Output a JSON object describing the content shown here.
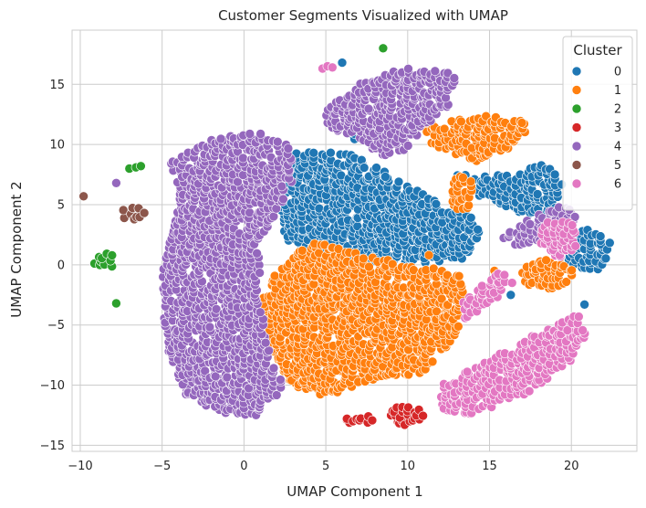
{
  "chart_data": {
    "type": "scatter",
    "title": "Customer Segments Visualized with UMAP",
    "xlabel": "UMAP Component 1",
    "ylabel": "UMAP Component 2",
    "xlim": [
      -10.5,
      24
    ],
    "ylim": [
      -15.5,
      19.5
    ],
    "x_ticks": [
      -10,
      -5,
      0,
      5,
      10,
      15,
      20
    ],
    "y_ticks": [
      -15,
      -10,
      -5,
      0,
      5,
      10,
      15
    ],
    "x_tick_labels": [
      "−10",
      "−5",
      "0",
      "5",
      "10",
      "15",
      "20"
    ],
    "y_tick_labels": [
      "−15",
      "−10",
      "−5",
      "0",
      "5",
      "10",
      "15"
    ],
    "grid": true,
    "legend": {
      "title": "Cluster",
      "placement": "top-right",
      "entries": [
        "0",
        "1",
        "2",
        "3",
        "4",
        "5",
        "6"
      ]
    },
    "series": [
      {
        "name": "0",
        "color": "#1f77b4",
        "regions": [
          {
            "shape": "poly",
            "points": [
              [
                3,
                9.5
              ],
              [
                6,
                9.5
              ],
              [
                9,
                7.5
              ],
              [
                12,
                5
              ],
              [
                14,
                4
              ],
              [
                14.5,
                2.5
              ],
              [
                13.5,
                0.5
              ],
              [
                10,
                0
              ],
              [
                6,
                0.5
              ],
              [
                2.5,
                2
              ],
              [
                2,
                5
              ],
              [
                2.5,
                7.5
              ]
            ]
          },
          {
            "shape": "poly",
            "points": [
              [
                13,
                7.5
              ],
              [
                16,
                7.5
              ],
              [
                18.5,
                8.5
              ],
              [
                19.5,
                7
              ],
              [
                19,
                4.5
              ],
              [
                17,
                4
              ],
              [
                15.5,
                5
              ],
              [
                14,
                6
              ]
            ]
          },
          {
            "shape": "ellipse",
            "cx": 21,
            "cy": 1.2,
            "rx": 1.5,
            "ry": 1.8
          },
          {
            "shape": "ellipse",
            "cx": 7,
            "cy": 11,
            "rx": 0.6,
            "ry": 0.8
          }
        ],
        "extra_points": [
          [
            6,
            16.8
          ],
          [
            20.8,
            -3.3
          ],
          [
            16.3,
            -2.5
          ]
        ]
      },
      {
        "name": "1",
        "color": "#ff7f0e",
        "regions": [
          {
            "shape": "poly",
            "points": [
              [
                4,
                2
              ],
              [
                7,
                1
              ],
              [
                10,
                0
              ],
              [
                13,
                -0.5
              ],
              [
                13.5,
                -2
              ],
              [
                13,
                -6
              ],
              [
                11,
                -9
              ],
              [
                8,
                -9.5
              ],
              [
                5,
                -11
              ],
              [
                3,
                -10
              ],
              [
                1.5,
                -7
              ],
              [
                1,
                -3
              ],
              [
                2,
                -0.5
              ]
            ]
          },
          {
            "shape": "poly",
            "points": [
              [
                11,
                11.5
              ],
              [
                14,
                12.5
              ],
              [
                17,
                12
              ],
              [
                17.5,
                11
              ],
              [
                16,
                9.5
              ],
              [
                14.5,
                8.5
              ],
              [
                13,
                9
              ],
              [
                11.5,
                10
              ]
            ]
          },
          {
            "shape": "ellipse",
            "cx": 18.5,
            "cy": -0.8,
            "rx": 1.6,
            "ry": 1.2
          },
          {
            "shape": "ellipse",
            "cx": 13.3,
            "cy": 6,
            "rx": 0.8,
            "ry": 1.5
          }
        ],
        "extra_points": [
          [
            15.3,
            -0.5
          ],
          [
            11.3,
            0.8
          ]
        ]
      },
      {
        "name": "2",
        "color": "#2ca02c",
        "regions": [
          {
            "shape": "ellipse",
            "cx": -8.5,
            "cy": 0.2,
            "rx": 0.7,
            "ry": 0.8
          }
        ],
        "extra_points": [
          [
            8.5,
            18
          ],
          [
            -7,
            8
          ],
          [
            -6.6,
            8.1
          ],
          [
            -6.3,
            8.2
          ],
          [
            -7.8,
            -3.2
          ]
        ]
      },
      {
        "name": "3",
        "color": "#d62728",
        "regions": [
          {
            "shape": "ellipse",
            "cx": 7.0,
            "cy": -12.9,
            "rx": 0.9,
            "ry": 0.5
          },
          {
            "shape": "ellipse",
            "cx": 9.8,
            "cy": -12.5,
            "rx": 1.2,
            "ry": 0.8
          }
        ],
        "extra_points": []
      },
      {
        "name": "4",
        "color": "#9467bd",
        "regions": [
          {
            "shape": "poly",
            "points": [
              [
                -4.5,
                8.5
              ],
              [
                -2,
                10.5
              ],
              [
                1,
                11
              ],
              [
                3,
                10
              ],
              [
                3,
                7
              ],
              [
                2,
                4
              ],
              [
                1,
                2
              ],
              [
                1,
                -3
              ],
              [
                1.5,
                -7
              ],
              [
                2.5,
                -10
              ],
              [
                1,
                -12.5
              ],
              [
                -1,
                -12.5
              ],
              [
                -3.5,
                -11
              ],
              [
                -4.5,
                -8
              ],
              [
                -5,
                -4
              ],
              [
                -5,
                0
              ],
              [
                -4.5,
                2
              ],
              [
                -4,
                5
              ]
            ]
          },
          {
            "shape": "poly",
            "points": [
              [
                5,
                13
              ],
              [
                7,
                15
              ],
              [
                10,
                16.5
              ],
              [
                13,
                16
              ],
              [
                12.5,
                13
              ],
              [
                11,
                11.5
              ],
              [
                10,
                9.5
              ],
              [
                8.5,
                9
              ],
              [
                7,
                10.5
              ],
              [
                5,
                11.5
              ]
            ]
          },
          {
            "shape": "poly",
            "points": [
              [
                15.5,
                2
              ],
              [
                17.5,
                4
              ],
              [
                19.5,
                5
              ],
              [
                20.5,
                4
              ],
              [
                19.5,
                2.5
              ],
              [
                17,
                1.5
              ]
            ]
          }
        ],
        "extra_points": [
          [
            -7.8,
            6.8
          ]
        ]
      },
      {
        "name": "5",
        "color": "#8c564b",
        "regions": [
          {
            "shape": "ellipse",
            "cx": -6.8,
            "cy": 4.3,
            "rx": 0.8,
            "ry": 0.6
          }
        ],
        "extra_points": [
          [
            -9.8,
            5.7
          ]
        ]
      },
      {
        "name": "6",
        "color": "#e377c2",
        "regions": [
          {
            "shape": "poly",
            "points": [
              [
                12,
                -10
              ],
              [
                16,
                -7
              ],
              [
                19,
                -5
              ],
              [
                20.5,
                -4
              ],
              [
                21,
                -5.5
              ],
              [
                20,
                -8
              ],
              [
                17,
                -11
              ],
              [
                14,
                -12.5
              ],
              [
                12,
                -12
              ]
            ]
          },
          {
            "shape": "poly",
            "points": [
              [
                13.3,
                -3
              ],
              [
                14.5,
                -1.5
              ],
              [
                15.8,
                -0.5
              ],
              [
                16.4,
                -1.5
              ],
              [
                15,
                -3.5
              ],
              [
                13.5,
                -4.5
              ]
            ]
          },
          {
            "shape": "ellipse",
            "cx": 19.2,
            "cy": 2.2,
            "rx": 1.2,
            "ry": 1.6
          }
        ],
        "extra_points": [
          [
            4.8,
            16.3
          ],
          [
            5.1,
            16.5
          ],
          [
            5.4,
            16.4
          ]
        ]
      }
    ]
  }
}
